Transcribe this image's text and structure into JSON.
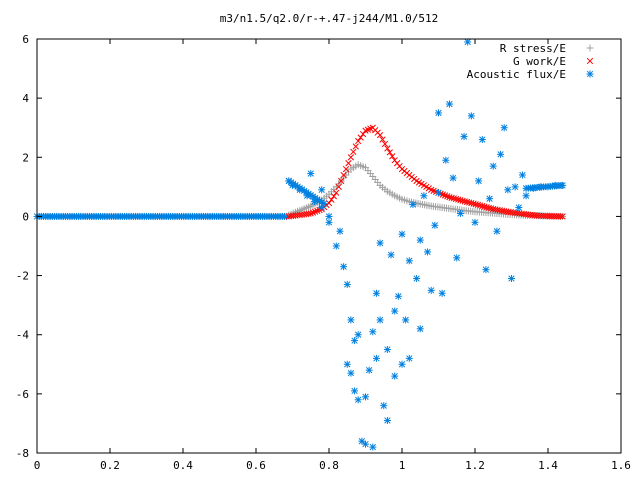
{
  "chart_data": {
    "type": "scatter",
    "title": "m3/n1.5/q2.0/r-+.47-j244/M1.0/512",
    "xlabel": "",
    "ylabel": "",
    "xlim": [
      0,
      1.6
    ],
    "ylim": [
      -8,
      6
    ],
    "x_ticks": [
      "0",
      "0.2",
      "0.4",
      "0.6",
      "0.8",
      "1",
      "1.2",
      "1.4",
      "1.6"
    ],
    "y_ticks": [
      "-8",
      "-6",
      "-4",
      "-2",
      "0",
      "2",
      "4",
      "6"
    ],
    "grid": false,
    "legend_position": "top-right",
    "series": [
      {
        "name": "R stress/E",
        "color": "#a0a0a0",
        "marker": "plus",
        "x": [
          0.69,
          0.72,
          0.75,
          0.78,
          0.8,
          0.82,
          0.84,
          0.86,
          0.88,
          0.9,
          0.92,
          0.94,
          0.96,
          0.98,
          1.0,
          1.02,
          1.05,
          1.08,
          1.11,
          1.14,
          1.17,
          1.2,
          1.23,
          1.26,
          1.29,
          1.32,
          1.35,
          1.38,
          1.41,
          1.44
        ],
        "y": [
          0.05,
          0.2,
          0.35,
          0.55,
          0.75,
          1.0,
          1.3,
          1.6,
          1.75,
          1.65,
          1.35,
          1.05,
          0.85,
          0.7,
          0.58,
          0.5,
          0.42,
          0.35,
          0.3,
          0.25,
          0.2,
          0.16,
          0.13,
          0.1,
          0.07,
          0.05,
          0.03,
          0.02,
          0.01,
          0.0
        ]
      },
      {
        "name": "G work/E",
        "color": "#ff0000",
        "marker": "cross",
        "x": [
          0.69,
          0.72,
          0.75,
          0.78,
          0.8,
          0.82,
          0.84,
          0.86,
          0.88,
          0.9,
          0.92,
          0.94,
          0.96,
          0.98,
          1.0,
          1.02,
          1.04,
          1.06,
          1.08,
          1.1,
          1.13,
          1.16,
          1.19,
          1.22,
          1.25,
          1.28,
          1.31,
          1.34,
          1.37,
          1.4,
          1.44
        ],
        "y": [
          0.0,
          0.05,
          0.1,
          0.25,
          0.45,
          0.8,
          1.4,
          2.0,
          2.55,
          2.9,
          3.0,
          2.75,
          2.3,
          1.9,
          1.6,
          1.4,
          1.2,
          1.05,
          0.9,
          0.8,
          0.65,
          0.55,
          0.45,
          0.35,
          0.25,
          0.18,
          0.12,
          0.07,
          0.03,
          0.01,
          0.0
        ]
      },
      {
        "name": "Acoustic flux/E",
        "color": "#0080e0",
        "marker": "star",
        "x": [
          0.69,
          0.7,
          0.72,
          0.74,
          0.76,
          0.78,
          0.75,
          0.8,
          0.78,
          0.82,
          0.84,
          0.8,
          0.83,
          0.85,
          0.86,
          0.87,
          0.88,
          0.85,
          0.86,
          0.87,
          0.88,
          0.89,
          0.9,
          0.9,
          0.91,
          0.92,
          0.92,
          0.93,
          0.93,
          0.94,
          0.94,
          0.95,
          0.96,
          0.96,
          0.97,
          0.98,
          0.98,
          0.99,
          1.0,
          1.0,
          1.01,
          1.02,
          1.02,
          1.03,
          1.04,
          1.05,
          1.05,
          1.06,
          1.07,
          1.08,
          1.09,
          1.1,
          1.1,
          1.11,
          1.12,
          1.13,
          1.14,
          1.15,
          1.16,
          1.17,
          1.18,
          1.19,
          1.2,
          1.21,
          1.22,
          1.23,
          1.24,
          1.25,
          1.26,
          1.27,
          1.28,
          1.29,
          1.3,
          1.31,
          1.32,
          1.33,
          1.34,
          1.36,
          1.38,
          1.4,
          1.42,
          1.44
        ],
        "y": [
          1.2,
          1.05,
          0.9,
          0.7,
          0.5,
          0.3,
          1.45,
          -0.2,
          0.9,
          -1.0,
          -1.7,
          0.0,
          -0.5,
          -2.3,
          -3.5,
          -4.2,
          -4.0,
          -5.0,
          -5.3,
          -5.9,
          -6.2,
          -7.6,
          -7.7,
          -6.1,
          -5.2,
          -7.8,
          -3.9,
          -4.8,
          -2.6,
          -3.5,
          -0.9,
          -6.4,
          -6.9,
          -4.5,
          -1.3,
          -5.4,
          -3.2,
          -2.7,
          -5.0,
          -0.6,
          -3.5,
          -1.5,
          -4.8,
          0.4,
          -2.1,
          -3.8,
          -0.8,
          0.7,
          -1.2,
          -2.5,
          -0.3,
          3.5,
          0.8,
          -2.6,
          1.9,
          3.8,
          1.3,
          -1.4,
          0.1,
          2.7,
          5.9,
          3.4,
          -0.2,
          1.2,
          2.6,
          -1.8,
          0.6,
          1.7,
          -0.5,
          2.1,
          3.0,
          0.9,
          -2.1,
          1.0,
          0.3,
          1.4,
          0.7,
          0.95,
          1.0,
          1.0,
          1.05,
          1.05
        ]
      }
    ]
  }
}
